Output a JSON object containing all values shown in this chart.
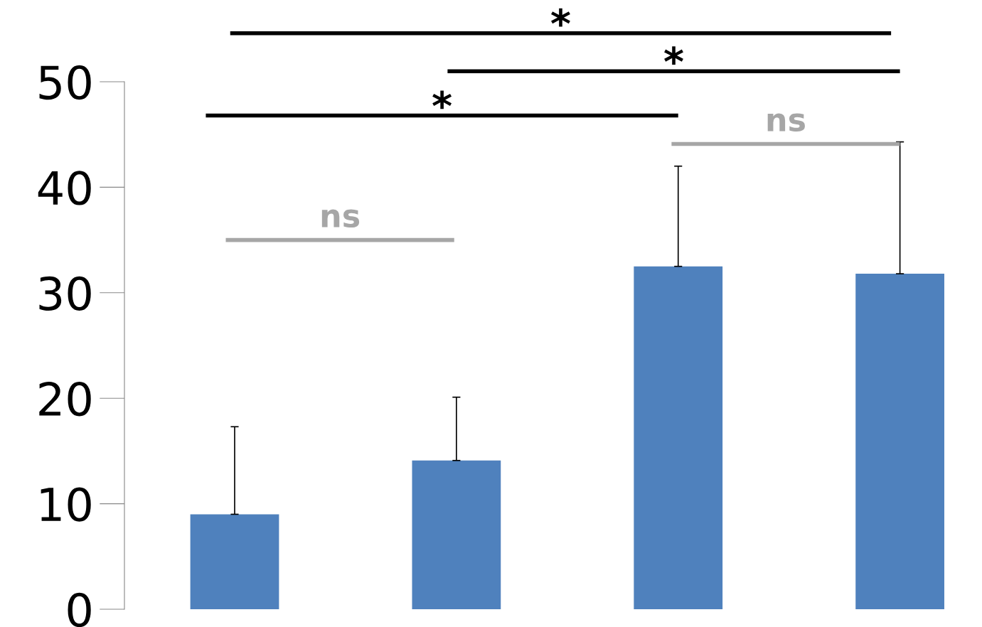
{
  "chart_data": {
    "type": "bar",
    "categories": [
      null,
      null,
      null,
      null
    ],
    "values": [
      9.0,
      14.1,
      32.5,
      31.8
    ],
    "errors": [
      [
        9.0,
        17.3
      ],
      [
        14.1,
        20.1
      ],
      [
        32.5,
        42.0
      ],
      [
        31.8,
        44.3
      ]
    ],
    "color": "#4f81bd",
    "ylim": [
      0,
      50
    ],
    "yticks": [
      0,
      10,
      20,
      30,
      40,
      50
    ],
    "tick_labels": "y",
    "grid": false,
    "legend": false,
    "annotations": [
      "*",
      "*",
      "*",
      "ns",
      "ns"
    ]
  }
}
